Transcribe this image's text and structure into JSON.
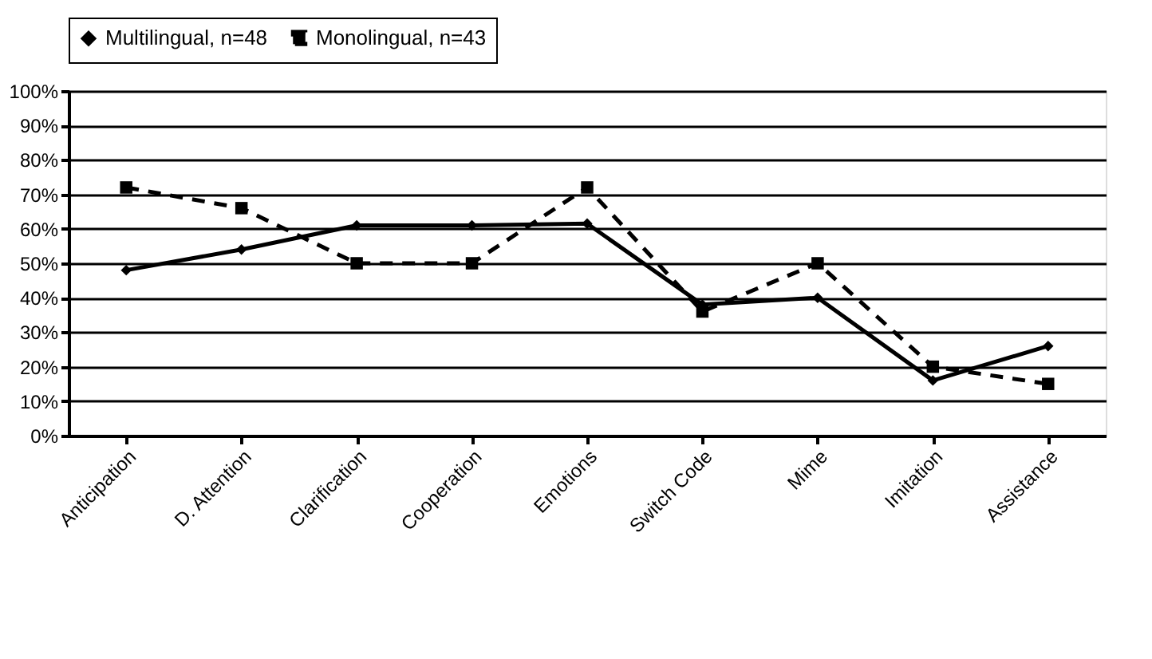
{
  "chart_data": {
    "type": "line",
    "categories": [
      "Anticipation",
      "D. Attention",
      "Clarification",
      "Cooperation",
      "Emotions",
      "Switch Code",
      "Mime",
      "Imitation",
      "Assistance"
    ],
    "series": [
      {
        "name": "Multilingual, n=48",
        "color": "#000000",
        "marker": "diamond",
        "line_style": "solid",
        "values": [
          48,
          54,
          61,
          61,
          61.5,
          38,
          40,
          16,
          26
        ]
      },
      {
        "name": "Monolingual, n=43",
        "color": "#000000",
        "marker": "square",
        "line_style": "dashed",
        "values": [
          72,
          66,
          50,
          50,
          72,
          36,
          50,
          20,
          15
        ]
      }
    ],
    "ylim": [
      0,
      100
    ],
    "yticks": [
      {
        "value": 0,
        "label": "0%"
      },
      {
        "value": 10,
        "label": "10%"
      },
      {
        "value": 20,
        "label": "20%"
      },
      {
        "value": 30,
        "label": "30%"
      },
      {
        "value": 40,
        "label": "40%"
      },
      {
        "value": 50,
        "label": "50%"
      },
      {
        "value": 60,
        "label": "60%"
      },
      {
        "value": 70,
        "label": "70%"
      },
      {
        "value": 80,
        "label": "80%"
      },
      {
        "value": 90,
        "label": "90%"
      },
      {
        "value": 100,
        "label": "100%"
      }
    ],
    "grid": "y",
    "legend": "top"
  }
}
